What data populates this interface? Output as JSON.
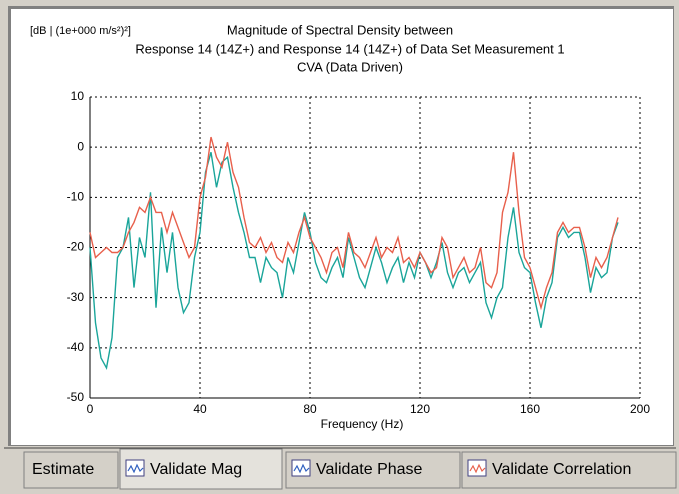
{
  "chart_data": {
    "type": "line",
    "title": [
      "Magnitude of Spectral Density between",
      "Response 14 (14Z+) and Response 14 (14Z+) of Data Set Measurement 1",
      "CVA (Data Driven)"
    ],
    "y_label": "[dB | (1e+000 m/s²)²]",
    "x_label": "Frequency (Hz)",
    "xlim": [
      0,
      200
    ],
    "xticks": [
      0,
      40,
      80,
      120,
      160,
      200
    ],
    "ylim": [
      -50,
      10
    ],
    "yticks": [
      -50,
      -40,
      -30,
      -20,
      -10,
      0,
      10
    ],
    "grid": true,
    "x": [
      0,
      2,
      4,
      6,
      8,
      10,
      12,
      14,
      16,
      18,
      20,
      22,
      24,
      26,
      28,
      30,
      32,
      34,
      36,
      38,
      40,
      42,
      44,
      46,
      48,
      50,
      52,
      54,
      56,
      58,
      60,
      62,
      64,
      66,
      68,
      70,
      72,
      74,
      76,
      78,
      80,
      82,
      84,
      86,
      88,
      90,
      92,
      94,
      96,
      98,
      100,
      102,
      104,
      106,
      108,
      110,
      112,
      114,
      116,
      118,
      120,
      122,
      124,
      126,
      128,
      130,
      132,
      134,
      136,
      138,
      140,
      142,
      144,
      146,
      148,
      150,
      152,
      154,
      156,
      158,
      160,
      162,
      164,
      166,
      168,
      170,
      172,
      174,
      176,
      178,
      180,
      182,
      184,
      186,
      188,
      190,
      192
    ],
    "series": [
      {
        "color": "#1aa59a",
        "values": [
          -20,
          -35,
          -42,
          -44,
          -38,
          -22,
          -20,
          -14,
          -28,
          -18,
          -22,
          -9,
          -32,
          -16,
          -25,
          -17,
          -28,
          -33,
          -31,
          -22,
          -17,
          -5,
          -1,
          -8,
          -3,
          -2,
          -8,
          -13,
          -17,
          -22,
          -22,
          -27,
          -22,
          -24,
          -25,
          -30,
          -22,
          -25,
          -19,
          -13,
          -17,
          -23,
          -26,
          -27,
          -24,
          -22,
          -26,
          -18,
          -22,
          -26,
          -28,
          -24,
          -20,
          -23,
          -27,
          -24,
          -22,
          -27,
          -23,
          -26,
          -21,
          -23,
          -26,
          -23,
          -19,
          -25,
          -28,
          -25,
          -24,
          -27,
          -25,
          -23,
          -31,
          -34,
          -30,
          -28,
          -18,
          -12,
          -21,
          -24,
          -25,
          -31,
          -36,
          -30,
          -27,
          -18,
          -16,
          -18,
          -17,
          -17,
          -22,
          -29,
          -24,
          -26,
          -25,
          -18,
          -15
        ]
      },
      {
        "color": "#e8604c",
        "values": [
          -17,
          -22,
          -21,
          -20,
          -21,
          -21,
          -20,
          -17,
          -15,
          -12,
          -13,
          -10,
          -13,
          -13,
          -17,
          -13,
          -16,
          -19,
          -22,
          -20,
          -10,
          -6,
          2,
          -2,
          -4,
          1,
          -5,
          -8,
          -14,
          -19,
          -20,
          -18,
          -21,
          -19,
          -22,
          -23,
          -19,
          -21,
          -17,
          -14,
          -18,
          -20,
          -22,
          -25,
          -21,
          -20,
          -24,
          -17,
          -21,
          -22,
          -24,
          -21,
          -18,
          -22,
          -20,
          -21,
          -18,
          -23,
          -22,
          -24,
          -21,
          -23,
          -25,
          -24,
          -18,
          -20,
          -26,
          -24,
          -22,
          -25,
          -24,
          -20,
          -27,
          -28,
          -25,
          -13,
          -9,
          -1,
          -13,
          -22,
          -24,
          -28,
          -32,
          -28,
          -25,
          -17,
          -15,
          -17,
          -16,
          -16,
          -20,
          -26,
          -22,
          -24,
          -22,
          -18,
          -14
        ]
      }
    ]
  },
  "tabs": [
    "Estimate",
    "Validate Mag",
    "Validate Phase",
    "Validate Correlation"
  ]
}
